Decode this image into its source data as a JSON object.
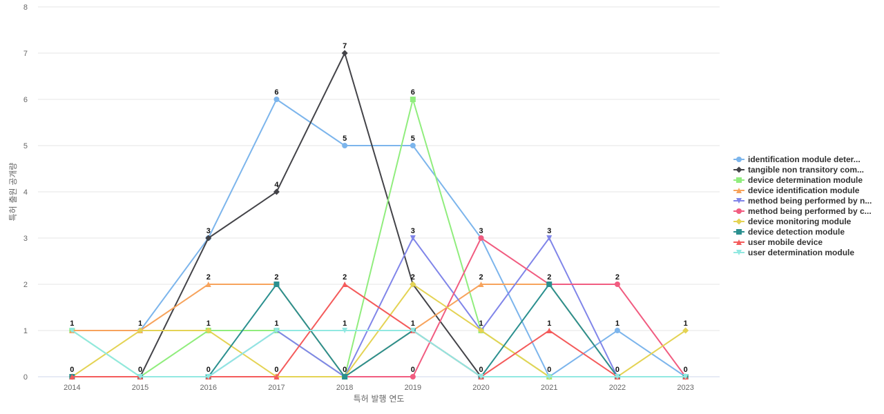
{
  "chart_data": {
    "type": "line",
    "title": "",
    "xlabel": "특허 발행 연도",
    "ylabel": "특허 출원 공개량",
    "x": [
      "2014",
      "2015",
      "2016",
      "2017",
      "2018",
      "2019",
      "2020",
      "2021",
      "2022",
      "2023"
    ],
    "ylim": [
      0,
      8
    ],
    "yticks": [
      0,
      1,
      2,
      3,
      4,
      5,
      6,
      7,
      8
    ],
    "grid": true,
    "legend_position": "right",
    "series": [
      {
        "name": "identification module deter...",
        "color": "#7cb5ec",
        "marker": "circle",
        "values": [
          1,
          1,
          3,
          6,
          5,
          5,
          3,
          0,
          1,
          0
        ]
      },
      {
        "name": "tangible non transitory com...",
        "color": "#434348",
        "marker": "diamond",
        "values": [
          0,
          0,
          3,
          4,
          7,
          2,
          0,
          0,
          0,
          0
        ]
      },
      {
        "name": "device determination module",
        "color": "#90ed7d",
        "marker": "square",
        "values": [
          1,
          0,
          1,
          1,
          0,
          6,
          1,
          0,
          0,
          0
        ]
      },
      {
        "name": "device identification module",
        "color": "#f7a35c",
        "marker": "triangle",
        "values": [
          1,
          1,
          2,
          2,
          0,
          1,
          2,
          2,
          0,
          0
        ]
      },
      {
        "name": "method being performed by n...",
        "color": "#8085e9",
        "marker": "triangle-down",
        "values": [
          0,
          0,
          0,
          1,
          0,
          3,
          1,
          3,
          0,
          0
        ]
      },
      {
        "name": "method being performed by c...",
        "color": "#f15c80",
        "marker": "circle",
        "values": [
          0,
          0,
          0,
          0,
          0,
          0,
          3,
          2,
          2,
          0
        ]
      },
      {
        "name": "device monitoring module",
        "color": "#e4d354",
        "marker": "diamond",
        "values": [
          0,
          1,
          1,
          0,
          0,
          2,
          1,
          0,
          0,
          1
        ]
      },
      {
        "name": "device detection module",
        "color": "#2b908f",
        "marker": "square",
        "values": [
          0,
          0,
          0,
          2,
          0,
          1,
          0,
          2,
          0,
          0
        ]
      },
      {
        "name": "user mobile device",
        "color": "#f45b5b",
        "marker": "triangle",
        "values": [
          0,
          0,
          0,
          0,
          2,
          1,
          0,
          1,
          0,
          0
        ]
      },
      {
        "name": "user determination module",
        "color": "#91e8e1",
        "marker": "triangle-down",
        "values": [
          1,
          0,
          0,
          1,
          1,
          1,
          0,
          0,
          0,
          0
        ]
      }
    ],
    "data_labels": [
      {
        "x": "2014",
        "value": 1
      },
      {
        "x": "2014",
        "value": 0
      },
      {
        "x": "2015",
        "value": 1
      },
      {
        "x": "2015",
        "value": 0
      },
      {
        "x": "2016",
        "value": 3
      },
      {
        "x": "2016",
        "value": 2
      },
      {
        "x": "2016",
        "value": 1
      },
      {
        "x": "2016",
        "value": 0
      },
      {
        "x": "2017",
        "value": 6
      },
      {
        "x": "2017",
        "value": 4
      },
      {
        "x": "2017",
        "value": 2
      },
      {
        "x": "2017",
        "value": 1
      },
      {
        "x": "2017",
        "value": 0
      },
      {
        "x": "2018",
        "value": 7
      },
      {
        "x": "2018",
        "value": 5
      },
      {
        "x": "2018",
        "value": 2
      },
      {
        "x": "2018",
        "value": 1
      },
      {
        "x": "2018",
        "value": 0
      },
      {
        "x": "2019",
        "value": 6
      },
      {
        "x": "2019",
        "value": 5
      },
      {
        "x": "2019",
        "value": 3
      },
      {
        "x": "2019",
        "value": 2
      },
      {
        "x": "2019",
        "value": 1
      },
      {
        "x": "2019",
        "value": 0
      },
      {
        "x": "2020",
        "value": 3
      },
      {
        "x": "2020",
        "value": 2
      },
      {
        "x": "2020",
        "value": 1
      },
      {
        "x": "2020",
        "value": 0
      },
      {
        "x": "2021",
        "value": 3
      },
      {
        "x": "2021",
        "value": 2
      },
      {
        "x": "2021",
        "value": 1
      },
      {
        "x": "2021",
        "value": 0
      },
      {
        "x": "2022",
        "value": 2
      },
      {
        "x": "2022",
        "value": 1
      },
      {
        "x": "2022",
        "value": 0
      },
      {
        "x": "2023",
        "value": 1
      },
      {
        "x": "2023",
        "value": 0
      }
    ]
  }
}
